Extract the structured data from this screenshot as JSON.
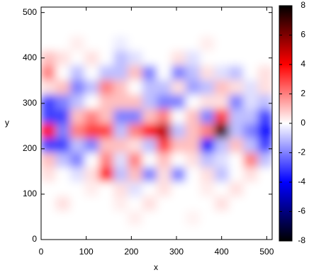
{
  "chart_data": {
    "type": "heatmap",
    "x_label": "x",
    "y_label": "y",
    "xlim": [
      0,
      512
    ],
    "ylim": [
      0,
      512
    ],
    "xticks": [
      0,
      100,
      200,
      300,
      400,
      500
    ],
    "yticks": [
      0,
      100,
      200,
      300,
      400,
      500
    ],
    "zlim": [
      -8,
      8
    ],
    "zticks": [
      -8,
      -6,
      -4,
      -2,
      0,
      2,
      4,
      6,
      8
    ],
    "colorscale": [
      "#000000",
      "#0000ff",
      "#ffffff",
      "#ff0000",
      "#000000"
    ],
    "z": [
      [
        0,
        0,
        0,
        0,
        0,
        0,
        0,
        0,
        0,
        0,
        0,
        0,
        0,
        0,
        0,
        0
      ],
      [
        0,
        0,
        0,
        0,
        0,
        0,
        0.3,
        0,
        0,
        0,
        0.2,
        0,
        0,
        0,
        0,
        0
      ],
      [
        0,
        0.5,
        0,
        0,
        0,
        0.3,
        0,
        0.5,
        0,
        0,
        0,
        0,
        0.5,
        0,
        0,
        0
      ],
      [
        0,
        0,
        0,
        0.3,
        0,
        0.5,
        -0.5,
        0,
        0.5,
        0,
        0,
        0.3,
        0,
        0.5,
        0,
        0
      ],
      [
        0.5,
        0,
        -0.5,
        0.5,
        4,
        -1,
        1,
        -2,
        0.5,
        -2,
        0,
        0.5,
        -1,
        0,
        0.5,
        0
      ],
      [
        1,
        -1,
        -2,
        0,
        2,
        -0.5,
        2,
        0,
        1,
        0,
        0.5,
        -1,
        -0.5,
        0,
        2,
        -1
      ],
      [
        -3,
        -3,
        -1,
        -2,
        1,
        1,
        0.5,
        -1,
        3,
        1,
        1,
        -4,
        -1,
        1,
        -1,
        -3
      ],
      [
        4,
        -2,
        2,
        3,
        3,
        -1,
        2,
        4,
        5,
        -1,
        1,
        2,
        7,
        -1,
        -2,
        -4
      ],
      [
        -3,
        -3,
        1,
        2,
        1,
        -2,
        -2,
        1,
        2,
        0,
        1,
        -2,
        3,
        -1,
        -1,
        -3
      ],
      [
        -3,
        -2,
        -1,
        0,
        1,
        1,
        1,
        -1,
        -2,
        -2,
        0,
        0.5,
        0.5,
        -2,
        -0.5,
        -1
      ],
      [
        0.5,
        1,
        -2,
        -1,
        2,
        1,
        0,
        -1,
        -1,
        0.5,
        -1.5,
        -1,
        1,
        0.5,
        -0.5,
        0.5
      ],
      [
        2,
        0,
        -1,
        0,
        -1,
        -1,
        1,
        -2,
        0,
        -2,
        -1,
        0.5,
        -0.5,
        -1,
        0,
        0.5
      ],
      [
        1,
        0.5,
        0,
        0.5,
        0,
        -1,
        -0.5,
        0,
        0,
        0.5,
        -0.5,
        0,
        0,
        0,
        0,
        0
      ],
      [
        0,
        0,
        0.3,
        0,
        0,
        -0.3,
        0,
        0,
        0,
        0,
        0,
        0.3,
        0,
        0,
        0,
        0
      ],
      [
        0,
        0,
        0,
        0,
        0,
        0,
        0,
        0,
        0,
        0,
        0,
        0,
        0,
        0,
        0,
        0
      ],
      [
        0,
        0,
        0,
        0,
        0,
        0,
        0,
        0,
        0,
        0,
        0,
        0,
        0,
        0,
        0,
        0
      ]
    ]
  }
}
